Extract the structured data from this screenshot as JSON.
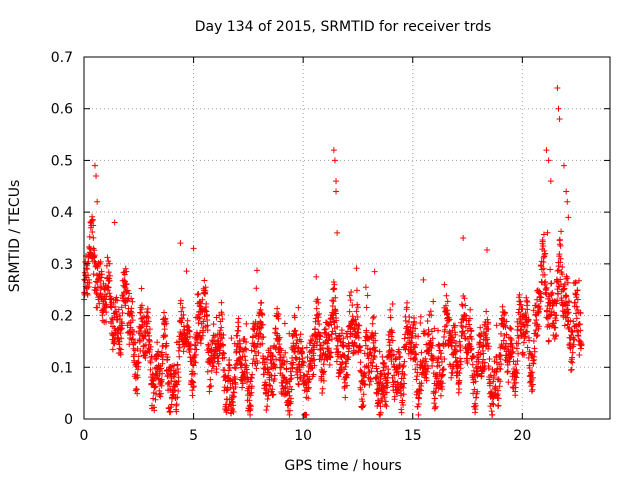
{
  "chart_data": {
    "type": "scatter",
    "title": "Day 134 of 2015, SRMTID for receiver trds",
    "xlabel": "GPS time / hours",
    "ylabel": "SRMTID / TECUs",
    "xlim": [
      0,
      24
    ],
    "ylim": [
      0,
      0.7
    ],
    "xticks": [
      0,
      5,
      10,
      15,
      20
    ],
    "xtick_labels": [
      "0",
      "5",
      "10",
      "15",
      "20"
    ],
    "yticks": [
      0,
      0.1,
      0.2,
      0.3,
      0.4,
      0.5,
      0.6,
      0.7
    ],
    "ytick_labels": [
      "0",
      "0.1",
      "0.2",
      "0.3",
      "0.4",
      "0.5",
      "0.6",
      "0.7"
    ],
    "grid": true,
    "marker": "+",
    "series": [
      {
        "name": "SRMTID",
        "color": "#ff0000",
        "x_range": [
          0.0,
          22.7
        ],
        "samples_per_hour": 120,
        "profile": [
          [
            0.0,
            0.22
          ],
          [
            0.3,
            0.3
          ],
          [
            0.6,
            0.32
          ],
          [
            1.0,
            0.2
          ],
          [
            1.5,
            0.22
          ],
          [
            2.0,
            0.19
          ],
          [
            2.5,
            0.15
          ],
          [
            3.0,
            0.12
          ],
          [
            3.5,
            0.1
          ],
          [
            4.0,
            0.09
          ],
          [
            4.5,
            0.13
          ],
          [
            5.0,
            0.16
          ],
          [
            5.5,
            0.17
          ],
          [
            6.0,
            0.14
          ],
          [
            6.5,
            0.08
          ],
          [
            7.0,
            0.09
          ],
          [
            7.5,
            0.11
          ],
          [
            8.0,
            0.13
          ],
          [
            8.5,
            0.11
          ],
          [
            9.0,
            0.1
          ],
          [
            9.5,
            0.1
          ],
          [
            10.0,
            0.1
          ],
          [
            10.5,
            0.11
          ],
          [
            11.0,
            0.17
          ],
          [
            11.5,
            0.15
          ],
          [
            12.0,
            0.14
          ],
          [
            12.5,
            0.15
          ],
          [
            13.0,
            0.1
          ],
          [
            13.5,
            0.09
          ],
          [
            14.0,
            0.08
          ],
          [
            14.5,
            0.12
          ],
          [
            15.0,
            0.13
          ],
          [
            15.5,
            0.11
          ],
          [
            16.0,
            0.11
          ],
          [
            16.5,
            0.12
          ],
          [
            17.0,
            0.16
          ],
          [
            17.5,
            0.14
          ],
          [
            18.0,
            0.12
          ],
          [
            18.5,
            0.1
          ],
          [
            19.0,
            0.1
          ],
          [
            19.5,
            0.14
          ],
          [
            20.0,
            0.15
          ],
          [
            20.5,
            0.16
          ],
          [
            21.0,
            0.26
          ],
          [
            21.5,
            0.22
          ],
          [
            22.0,
            0.24
          ],
          [
            22.4,
            0.18
          ],
          [
            22.7,
            0.14
          ]
        ],
        "spikes": [
          [
            0.5,
            0.49
          ],
          [
            0.55,
            0.47
          ],
          [
            0.6,
            0.42
          ],
          [
            1.4,
            0.38
          ],
          [
            4.4,
            0.34
          ],
          [
            5.0,
            0.33
          ],
          [
            11.4,
            0.52
          ],
          [
            11.45,
            0.5
          ],
          [
            11.5,
            0.46
          ],
          [
            11.5,
            0.44
          ],
          [
            11.55,
            0.36
          ],
          [
            17.3,
            0.35
          ],
          [
            21.1,
            0.52
          ],
          [
            21.2,
            0.5
          ],
          [
            21.3,
            0.46
          ],
          [
            21.6,
            0.64
          ],
          [
            21.65,
            0.6
          ],
          [
            21.7,
            0.58
          ],
          [
            21.9,
            0.49
          ],
          [
            22.0,
            0.44
          ],
          [
            22.05,
            0.42
          ],
          [
            22.1,
            0.39
          ]
        ]
      }
    ]
  }
}
